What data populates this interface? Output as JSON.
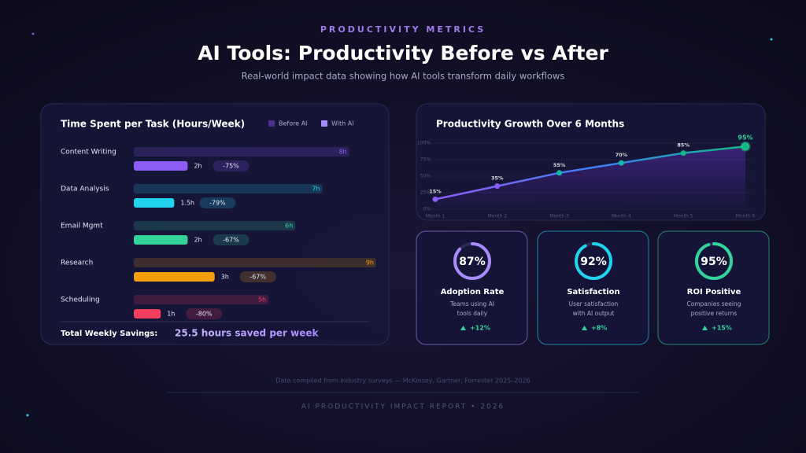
{
  "header": {
    "eyebrow": "PRODUCTIVITY METRICS",
    "title": "AI Tools: Productivity Before vs After",
    "subtitle": "Real-world impact data showing how AI tools transform daily workflows"
  },
  "chart_data": [
    {
      "type": "hbar",
      "title": "Time Spent per Task (Hours/Week)",
      "categories": [
        "Content Writing",
        "Data Analysis",
        "Email Mgmt",
        "Research",
        "Scheduling"
      ],
      "colors": [
        "#8b5cf6",
        "#22d3ee",
        "#34d399",
        "#f59e0b",
        "#f43f5e"
      ],
      "series": [
        {
          "name": "Before AI",
          "color": "#4c2f8f",
          "values": [
            8,
            7,
            6,
            9,
            5
          ],
          "value_labels": [
            "8h",
            "7h",
            "6h",
            "9h",
            "5h"
          ]
        },
        {
          "name": "With AI",
          "color": "#a78bfa",
          "values": [
            2,
            1.5,
            2,
            3,
            1
          ],
          "value_labels": [
            "2h",
            "1.5h",
            "2h",
            "3h",
            "1h"
          ]
        }
      ],
      "reductions": [
        "-75%",
        "-79%",
        "-67%",
        "-67%",
        "-80%"
      ],
      "total_label": "Total Weekly Savings:",
      "total_value": "25.5 hours saved per week"
    },
    {
      "type": "line",
      "title": "Productivity Growth Over 6 Months",
      "categories": [
        "Month 1",
        "Month 2",
        "Month 3",
        "Month 4",
        "Month 5",
        "Month 6"
      ],
      "values": [
        15,
        35,
        55,
        70,
        85,
        95
      ],
      "value_labels": [
        "15%",
        "35%",
        "55%",
        "70%",
        "85%",
        "95%"
      ],
      "ylim": [
        0,
        100
      ],
      "yticks": [
        {
          "value": 0,
          "label": "0%"
        },
        {
          "value": 25,
          "label": "25%"
        },
        {
          "value": 50,
          "label": "50%"
        },
        {
          "value": 75,
          "label": "75%"
        },
        {
          "value": 100,
          "label": "100%"
        }
      ],
      "grid": true
    }
  ],
  "cards": [
    {
      "value": 87,
      "value_label": "87%",
      "title": "Adoption Rate",
      "description": [
        "Teams using AI",
        "tools daily"
      ],
      "change": "+12%",
      "color": "#a78bfa"
    },
    {
      "value": 92,
      "value_label": "92%",
      "title": "Satisfaction",
      "description": [
        "User satisfaction",
        "with AI output"
      ],
      "change": "+8%",
      "color": "#22d3ee"
    },
    {
      "value": 95,
      "value_label": "95%",
      "title": "ROI Positive",
      "description": [
        "Companies seeing",
        "positive returns"
      ],
      "change": "+15%",
      "color": "#34d399"
    }
  ],
  "footer": {
    "source": "Data compiled from industry surveys — McKinsey, Gartner, Forrester 2025–2026",
    "report": "AI PRODUCTIVITY IMPACT REPORT • 2026"
  }
}
